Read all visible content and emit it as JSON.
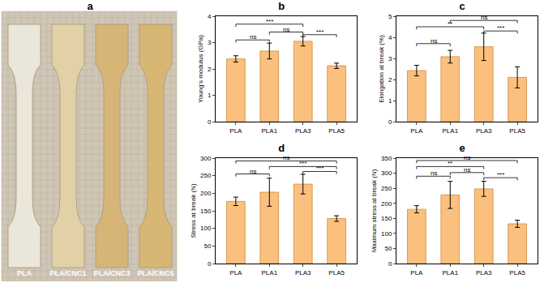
{
  "photo": {
    "title": "a",
    "labels": [
      "PLA",
      "PLA/CNC1",
      "PLA/CNC3",
      "PLA/CNC5"
    ]
  },
  "chart_data": [
    {
      "type": "bar",
      "title": "b",
      "y_label": "Young's modulus (GPa)",
      "color": "#fbc07e",
      "categories": [
        "PLA",
        "PLA1",
        "PLA3",
        "PLA5"
      ],
      "values": [
        2.38,
        2.68,
        3.05,
        2.12
      ],
      "errors": [
        0.12,
        0.3,
        0.18,
        0.1
      ],
      "ylim": [
        0,
        4
      ],
      "yticks": [
        0,
        1,
        2,
        3,
        4
      ],
      "significance": [
        {
          "from": "PLA",
          "to": "PLA1",
          "label": "ns",
          "y": 3.1
        },
        {
          "from": "PLA1",
          "to": "PLA3",
          "label": "ns",
          "y": 3.4
        },
        {
          "from": "PLA3",
          "to": "PLA5",
          "label": "***",
          "y": 3.3
        },
        {
          "from": "PLA",
          "to": "PLA3",
          "label": "***",
          "y": 3.7
        }
      ]
    },
    {
      "type": "bar",
      "title": "c",
      "y_label": "Elongation at break (%)",
      "color": "#fbc07e",
      "categories": [
        "PLA",
        "PLA1",
        "PLA3",
        "PLA5"
      ],
      "values": [
        2.42,
        3.08,
        3.55,
        2.1
      ],
      "errors": [
        0.25,
        0.3,
        0.65,
        0.5
      ],
      "ylim": [
        0,
        5
      ],
      "yticks": [
        0,
        1,
        2,
        3,
        4,
        5
      ],
      "significance": [
        {
          "from": "PLA",
          "to": "PLA1",
          "label": "ns",
          "y": 3.7
        },
        {
          "from": "PLA3",
          "to": "PLA5",
          "label": "***",
          "y": 4.3
        },
        {
          "from": "PLA",
          "to": "PLA3",
          "label": "**",
          "y": 4.5
        },
        {
          "from": "PLA1",
          "to": "PLA5",
          "label": "ns",
          "y": 4.8
        }
      ]
    },
    {
      "type": "bar",
      "title": "d",
      "y_label": "Stress at break (N)",
      "color": "#fbc07e",
      "categories": [
        "PLA",
        "PLA1",
        "PLA3",
        "PLA5"
      ],
      "values": [
        177,
        203,
        226,
        128
      ],
      "errors": [
        12,
        40,
        28,
        8
      ],
      "ylim": [
        0,
        300
      ],
      "yticks": [
        0,
        50,
        100,
        150,
        200,
        250,
        300
      ],
      "significance": [
        {
          "from": "PLA",
          "to": "PLA1",
          "label": "ns",
          "y": 255
        },
        {
          "from": "PLA3",
          "to": "PLA5",
          "label": "***",
          "y": 262
        },
        {
          "from": "PLA1",
          "to": "PLA5",
          "label": "***",
          "y": 276
        },
        {
          "from": "PLA",
          "to": "PLA5",
          "label": "ns",
          "y": 292
        }
      ]
    },
    {
      "type": "bar",
      "title": "e",
      "y_label": "Maximum stress at break (N)",
      "color": "#fbc07e",
      "categories": [
        "PLA",
        "PLA1",
        "PLA3",
        "PLA5"
      ],
      "values": [
        180,
        228,
        248,
        132
      ],
      "errors": [
        12,
        45,
        25,
        12
      ],
      "ylim": [
        0,
        350
      ],
      "yticks": [
        0,
        50,
        100,
        150,
        200,
        250,
        300,
        350
      ],
      "significance": [
        {
          "from": "PLA",
          "to": "PLA1",
          "label": "ns",
          "y": 290
        },
        {
          "from": "PLA3",
          "to": "PLA5",
          "label": "***",
          "y": 285
        },
        {
          "from": "PLA1",
          "to": "PLA3",
          "label": "ns",
          "y": 302
        },
        {
          "from": "PLA",
          "to": "PLA3",
          "label": "**",
          "y": 322
        },
        {
          "from": "PLA",
          "to": "PLA5",
          "label": "ns",
          "y": 342
        }
      ]
    }
  ]
}
